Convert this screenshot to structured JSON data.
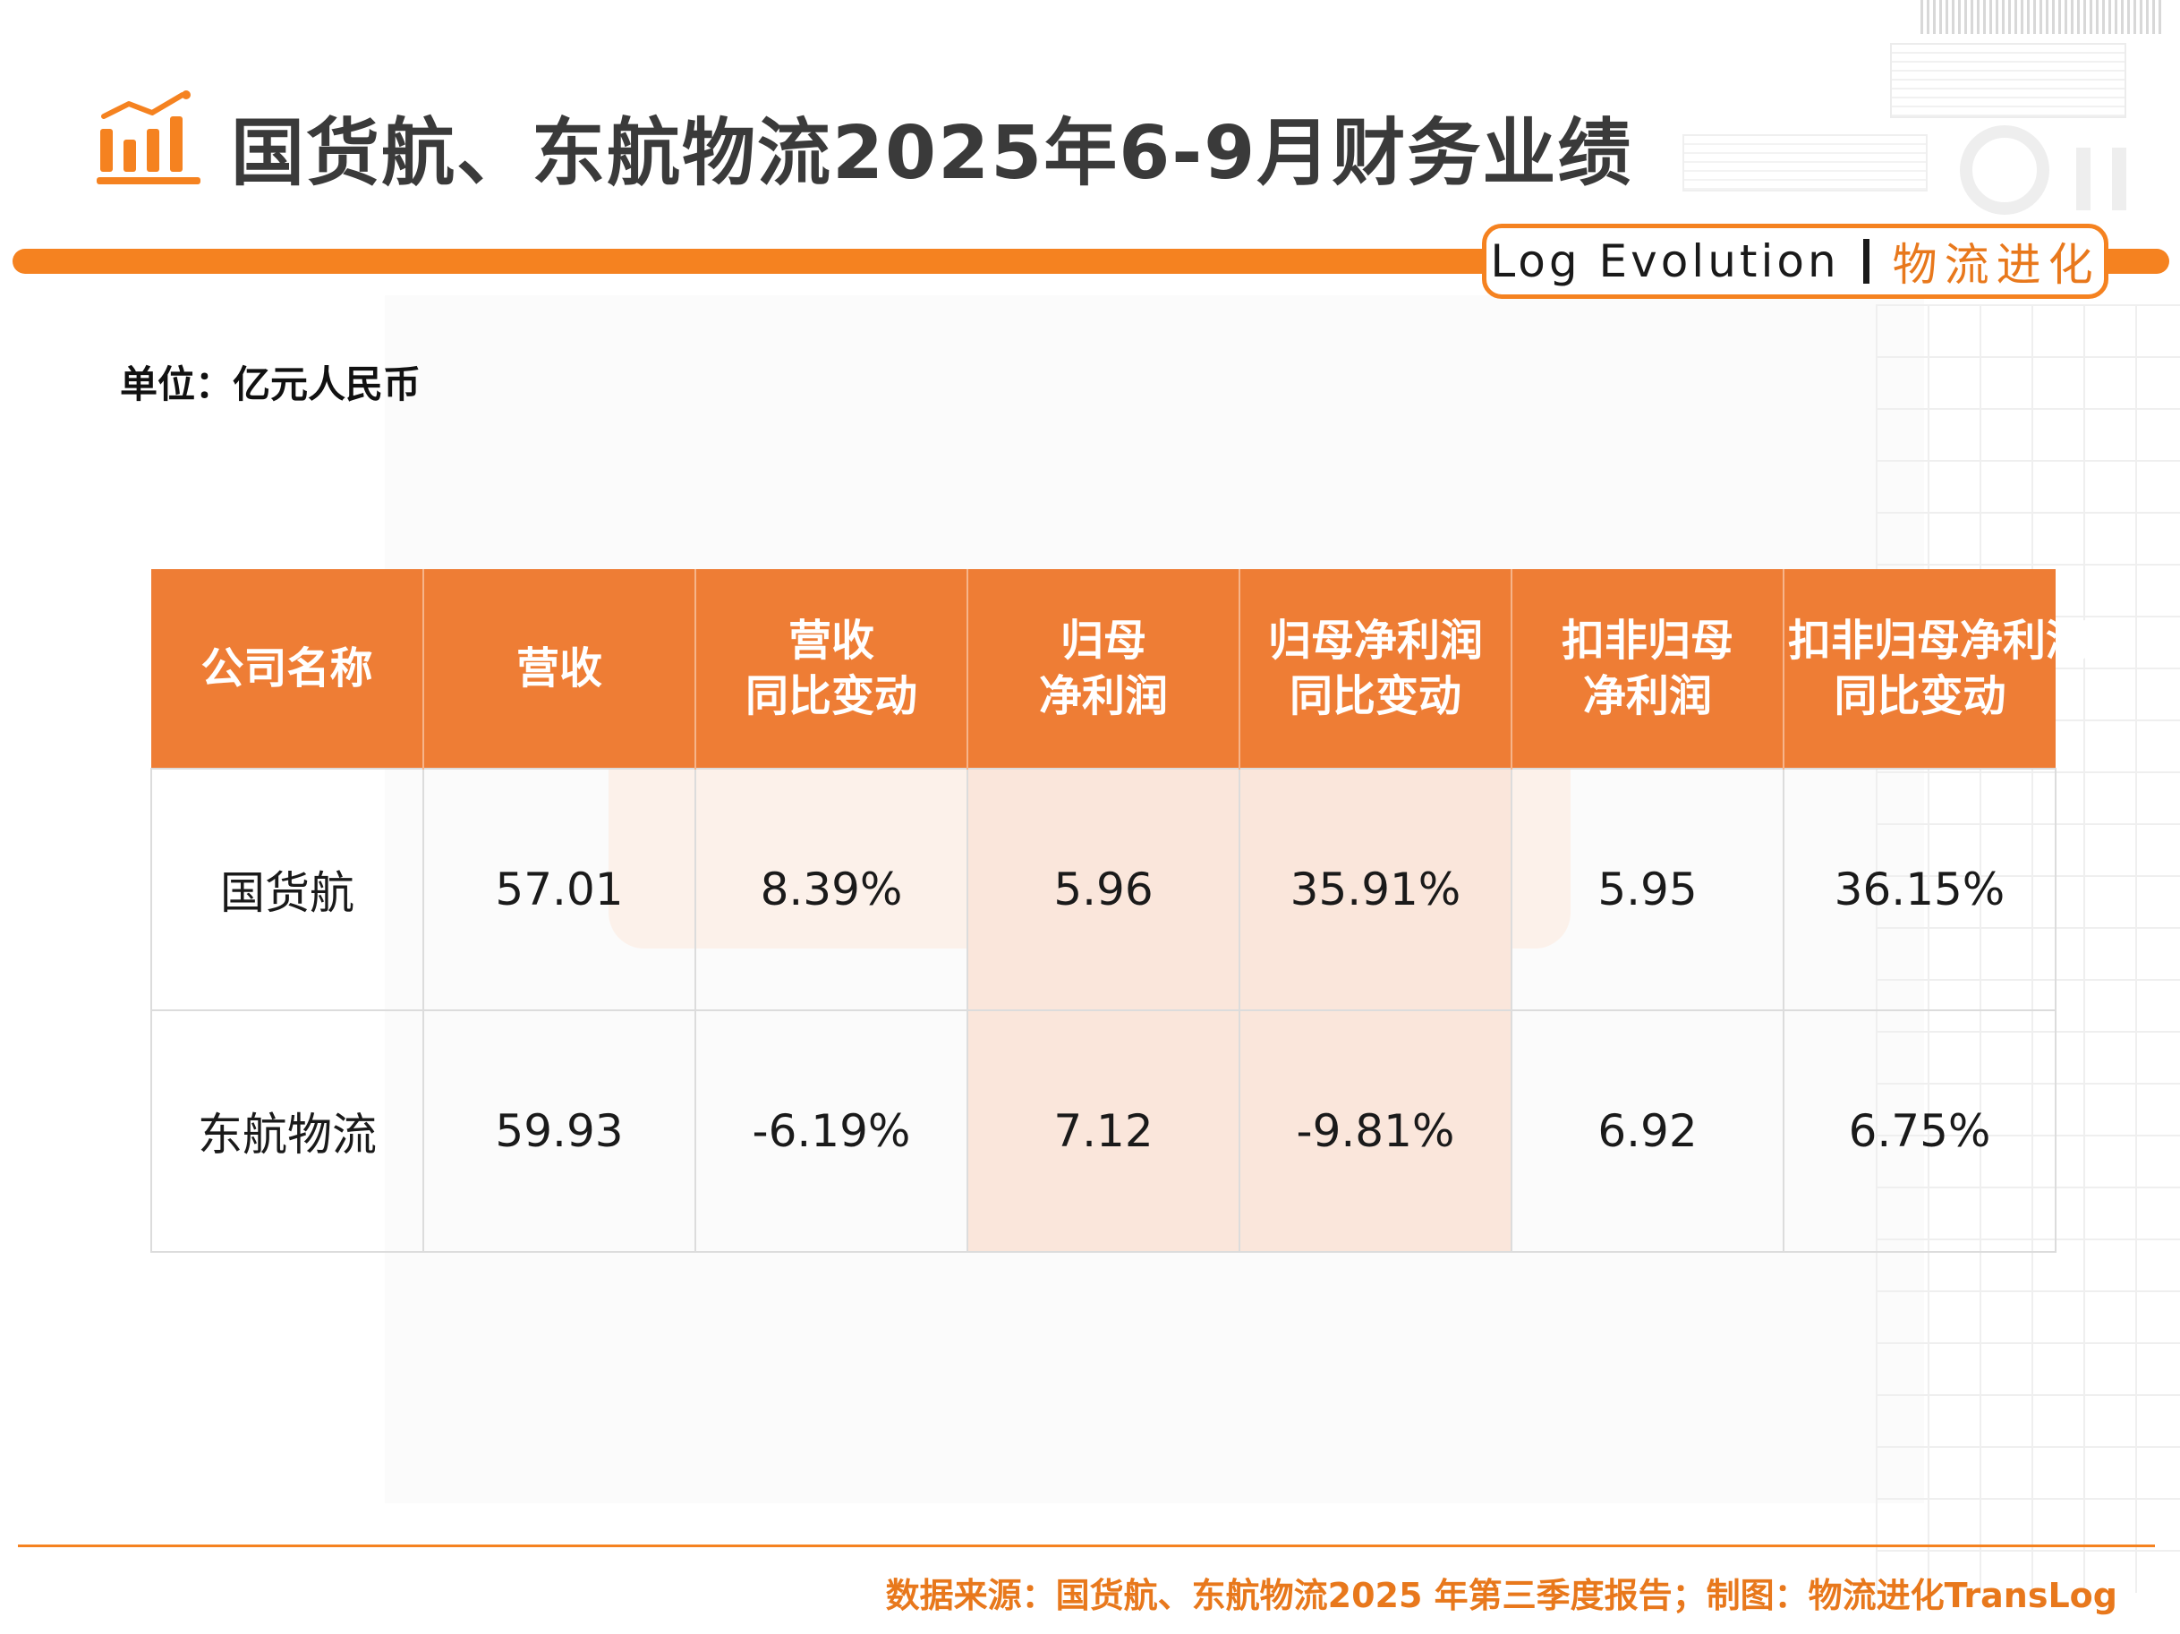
{
  "header": {
    "title": "国货航、东航物流2025年6-9月财务业绩",
    "brand_en": "Log Evolution",
    "brand_cn": "物流进化"
  },
  "unit": "单位：亿元人民币",
  "table": {
    "headers": [
      [
        "公司名称"
      ],
      [
        "营收"
      ],
      [
        "营收",
        "同比变动"
      ],
      [
        "归母",
        "净利润"
      ],
      [
        "归母净利润",
        "同比变动"
      ],
      [
        "扣非归母",
        "净利润"
      ],
      [
        "扣非归母净利润",
        "同比变动"
      ]
    ],
    "rows": [
      [
        "国货航",
        "57.01",
        "8.39%",
        "5.96",
        "35.91%",
        "5.95",
        "36.15%"
      ],
      [
        "东航物流",
        "59.93",
        "-6.19%",
        "7.12",
        "-9.81%",
        "6.92",
        "6.75%"
      ]
    ]
  },
  "footer": {
    "source": "数据来源：国货航、东航物流2025 年第三季度报告；制图：物流进化TransLog"
  },
  "colors": {
    "accent": "#f58220",
    "header_bg": "#ee7d35",
    "highlight_bg": "#fae6db"
  }
}
